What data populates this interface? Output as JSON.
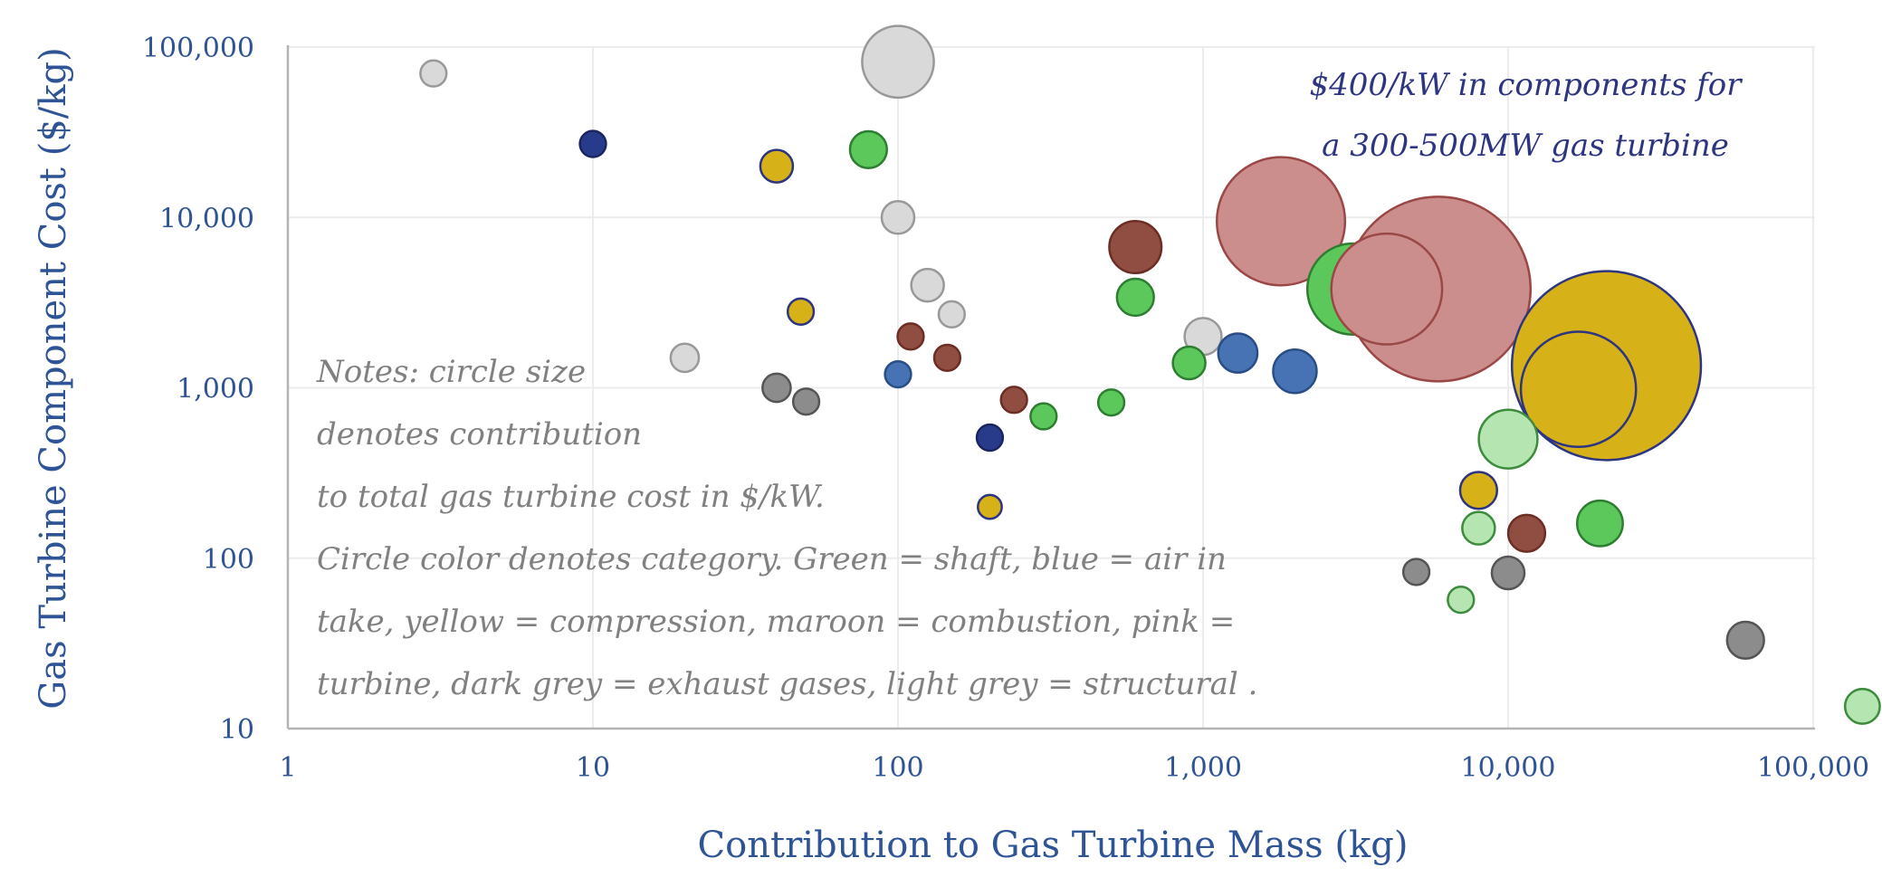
{
  "chart_data": {
    "type": "scatter",
    "xlabel": "Contribution to Gas Turbine Mass (kg)",
    "ylabel": "Gas Turbine Component Cost ($/kg)",
    "x_scale": "log",
    "y_scale": "log",
    "xlim": [
      1,
      150000
    ],
    "ylim": [
      10,
      100000
    ],
    "x_ticks": [
      1,
      10,
      100,
      1000,
      10000,
      100000
    ],
    "x_tick_labels": [
      "1",
      "10",
      "100",
      "1,000",
      "10,000",
      "100,000"
    ],
    "y_ticks": [
      10,
      100,
      1000,
      10000,
      100000
    ],
    "y_tick_labels": [
      "10",
      "100",
      "1,000",
      "10,000",
      "100,000"
    ],
    "grid": true,
    "annotation": [
      "$400/kW in components for",
      "a 300-500MW gas turbine"
    ],
    "notes": [
      "Notes: circle size",
      "denotes contribution",
      "to total gas turbine cost in $/kW.",
      "Circle color denotes category. Green = shaft, blue = air in",
      "take, yellow = compression, maroon = combustion, pink =",
      "turbine, dark grey = exhaust gases, light grey = structural ."
    ],
    "categories": {
      "shaft": {
        "fill": "#5cc85c",
        "stroke": "#2e7d32"
      },
      "shaft_light": {
        "fill": "#b5e6b2",
        "stroke": "#3d8b3d"
      },
      "air_intake_navy": {
        "fill": "#283b8a",
        "stroke": "#1a2560"
      },
      "air_intake_blue": {
        "fill": "#4773b4",
        "stroke": "#2a4d85"
      },
      "compression": {
        "fill": "#d6b118",
        "stroke": "#2d3580"
      },
      "combustion": {
        "fill": "#904d42",
        "stroke": "#6b2e25"
      },
      "turbine": {
        "fill": "#cc8e8d",
        "stroke": "#9a4845"
      },
      "exhaust": {
        "fill": "#8c8c8c",
        "stroke": "#555555"
      },
      "structural": {
        "fill": "#d9d9d9",
        "stroke": "#999999"
      }
    },
    "points": [
      {
        "x": 3,
        "y": 70000,
        "size": 12,
        "category": "structural"
      },
      {
        "x": 100,
        "y": 82000,
        "size": 33,
        "category": "structural"
      },
      {
        "x": 10,
        "y": 27000,
        "size": 12,
        "category": "air_intake_navy"
      },
      {
        "x": 40,
        "y": 20000,
        "size": 15,
        "category": "compression"
      },
      {
        "x": 80,
        "y": 25000,
        "size": 17,
        "category": "shaft"
      },
      {
        "x": 100,
        "y": 10000,
        "size": 15,
        "category": "structural"
      },
      {
        "x": 600,
        "y": 6700,
        "size": 24,
        "category": "combustion"
      },
      {
        "x": 1800,
        "y": 9500,
        "size": 59,
        "category": "turbine"
      },
      {
        "x": 3100,
        "y": 3800,
        "size": 42,
        "category": "shaft"
      },
      {
        "x": 5900,
        "y": 3800,
        "size": 85,
        "category": "turbine"
      },
      {
        "x": 4000,
        "y": 3800,
        "size": 51,
        "category": "turbine"
      },
      {
        "x": 21000,
        "y": 1350,
        "size": 87,
        "category": "compression"
      },
      {
        "x": 17000,
        "y": 980,
        "size": 53,
        "category": "compression"
      },
      {
        "x": 125,
        "y": 4000,
        "size": 15,
        "category": "structural"
      },
      {
        "x": 150,
        "y": 2700,
        "size": 12,
        "category": "structural"
      },
      {
        "x": 48,
        "y": 2800,
        "size": 12,
        "category": "compression"
      },
      {
        "x": 600,
        "y": 3400,
        "size": 17,
        "category": "shaft"
      },
      {
        "x": 1000,
        "y": 2000,
        "size": 17,
        "category": "structural"
      },
      {
        "x": 20,
        "y": 1500,
        "size": 13,
        "category": "structural"
      },
      {
        "x": 110,
        "y": 2000,
        "size": 12,
        "category": "combustion"
      },
      {
        "x": 145,
        "y": 1500,
        "size": 12,
        "category": "combustion"
      },
      {
        "x": 1300,
        "y": 1600,
        "size": 18,
        "category": "air_intake_blue"
      },
      {
        "x": 2000,
        "y": 1250,
        "size": 20,
        "category": "air_intake_blue"
      },
      {
        "x": 900,
        "y": 1400,
        "size": 15,
        "category": "shaft"
      },
      {
        "x": 40,
        "y": 1000,
        "size": 13,
        "category": "exhaust"
      },
      {
        "x": 50,
        "y": 830,
        "size": 12,
        "category": "exhaust"
      },
      {
        "x": 100,
        "y": 1200,
        "size": 12,
        "category": "air_intake_blue"
      },
      {
        "x": 240,
        "y": 850,
        "size": 12,
        "category": "combustion"
      },
      {
        "x": 300,
        "y": 680,
        "size": 12,
        "category": "shaft"
      },
      {
        "x": 500,
        "y": 820,
        "size": 12,
        "category": "shaft"
      },
      {
        "x": 200,
        "y": 510,
        "size": 12,
        "category": "air_intake_navy"
      },
      {
        "x": 200,
        "y": 200,
        "size": 11,
        "category": "compression"
      },
      {
        "x": 10000,
        "y": 500,
        "size": 27,
        "category": "shaft_light"
      },
      {
        "x": 8000,
        "y": 250,
        "size": 17,
        "category": "compression"
      },
      {
        "x": 8000,
        "y": 150,
        "size": 15,
        "category": "shaft_light"
      },
      {
        "x": 11500,
        "y": 140,
        "size": 17,
        "category": "combustion"
      },
      {
        "x": 20000,
        "y": 160,
        "size": 21,
        "category": "shaft"
      },
      {
        "x": 5000,
        "y": 83,
        "size": 12,
        "category": "exhaust"
      },
      {
        "x": 10000,
        "y": 82,
        "size": 15,
        "category": "exhaust"
      },
      {
        "x": 7000,
        "y": 57,
        "size": 12,
        "category": "shaft_light"
      },
      {
        "x": 60000,
        "y": 33,
        "size": 17,
        "category": "exhaust"
      },
      {
        "x": 145000,
        "y": 13.5,
        "size": 16,
        "category": "shaft_light"
      }
    ]
  }
}
